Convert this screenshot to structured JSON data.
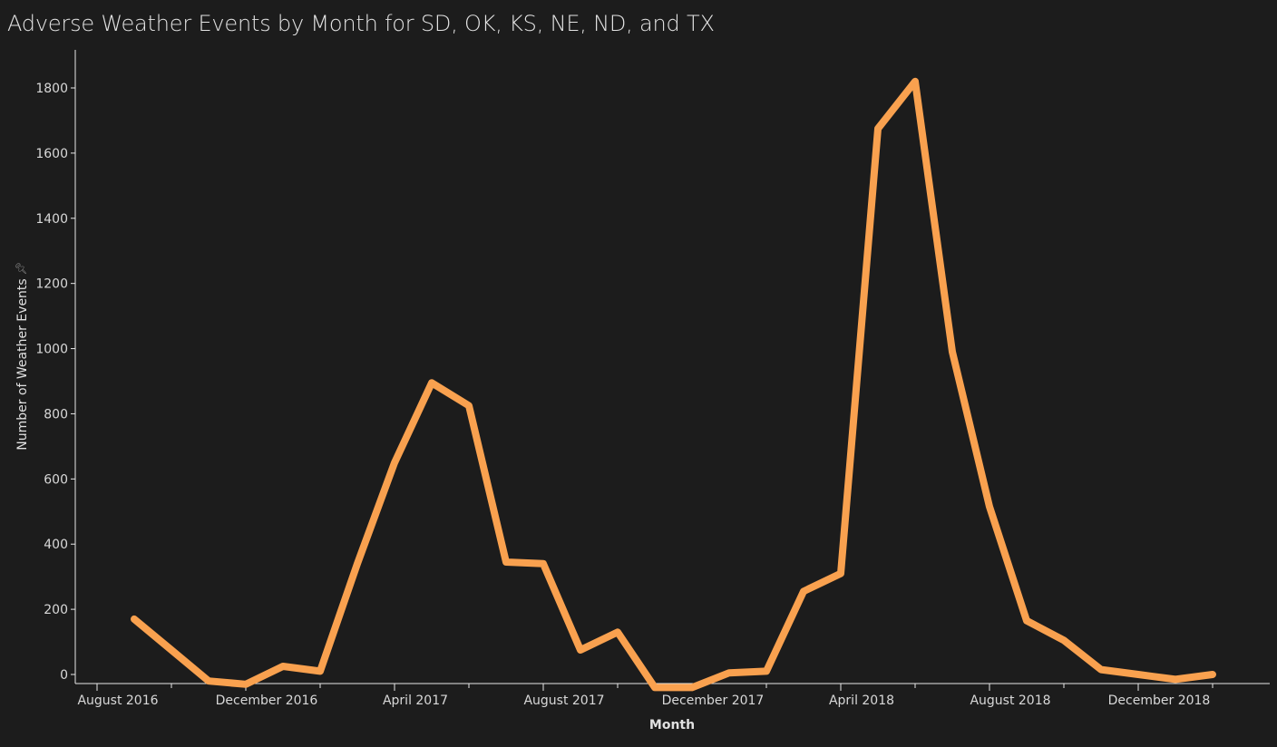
{
  "chart_data": {
    "type": "line",
    "title": "Adverse Weather Events by Month for SD, OK, KS, NE, ND, and TX",
    "xlabel": "Month",
    "ylabel": "Number of Weather Events",
    "ylim": [
      -20,
      1920
    ],
    "yticks": [
      0,
      200,
      400,
      600,
      800,
      1000,
      1200,
      1400,
      1600,
      1800
    ],
    "xticks": [
      {
        "month": "2016-08",
        "label": "August 2016"
      },
      {
        "month": "2016-12",
        "label": "December 2016"
      },
      {
        "month": "2017-04",
        "label": "April 2017"
      },
      {
        "month": "2017-08",
        "label": "August 2017"
      },
      {
        "month": "2017-12",
        "label": "December 2017"
      },
      {
        "month": "2018-04",
        "label": "April 2018"
      },
      {
        "month": "2018-08",
        "label": "August 2018"
      },
      {
        "month": "2018-12",
        "label": "December 2018"
      }
    ],
    "grid": false,
    "line_color": "#f9a14f",
    "series": [
      {
        "x": [
          "2016-09",
          "2016-10",
          "2016-11",
          "2016-12",
          "2017-01",
          "2017-02",
          "2017-03",
          "2017-04",
          "2017-05",
          "2017-06",
          "2017-07",
          "2017-08",
          "2017-09",
          "2017-10",
          "2017-11",
          "2017-12",
          "2018-01",
          "2018-02",
          "2018-03",
          "2018-04",
          "2018-05",
          "2018-06",
          "2018-07",
          "2018-08",
          "2018-09",
          "2018-10",
          "2018-11",
          "2018-12",
          "2019-01",
          "2019-02"
        ],
        "values": [
          170,
          75,
          -20,
          -30,
          25,
          10,
          340,
          650,
          895,
          825,
          345,
          340,
          75,
          130,
          -40,
          -40,
          5,
          10,
          255,
          310,
          1675,
          1820,
          990,
          515,
          165,
          105,
          15,
          0,
          -15,
          0
        ]
      }
    ]
  }
}
